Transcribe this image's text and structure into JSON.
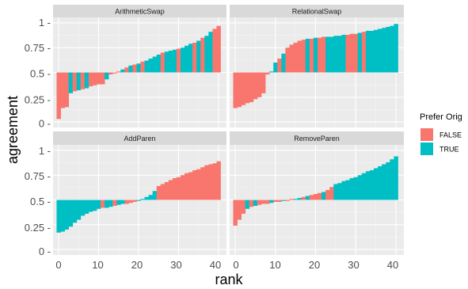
{
  "chart_data": {
    "type": "bar",
    "xlabel": "rank",
    "ylabel": "agreement",
    "xlim": [
      0,
      41
    ],
    "ylim": [
      0,
      1
    ],
    "baseline": 0.5,
    "x_ticks": [
      0,
      10,
      20,
      30,
      40
    ],
    "x_tick_labels": [
      "0",
      "10",
      "20",
      "30",
      "40"
    ],
    "y_ticks": [
      0,
      0.25,
      0.5,
      0.75,
      1
    ],
    "y_tick_labels": [
      "0 -",
      "0.25 -",
      "0.5 -",
      "0.75 -",
      "1 -"
    ],
    "grid": true,
    "legend": {
      "title": "Prefer Orig",
      "position": "right",
      "entries": [
        {
          "label": "FALSE",
          "key": "false",
          "color": "#F8766D"
        },
        {
          "label": "TRUE",
          "key": "true",
          "color": "#00BFC4"
        }
      ]
    },
    "panels": [
      {
        "title": "ArithmeticSwap",
        "values": [
          0.03,
          0.14,
          0.15,
          0.29,
          0.31,
          0.32,
          0.33,
          0.34,
          0.36,
          0.37,
          0.38,
          0.38,
          0.43,
          0.48,
          0.49,
          0.51,
          0.53,
          0.55,
          0.57,
          0.58,
          0.59,
          0.61,
          0.62,
          0.64,
          0.66,
          0.68,
          0.7,
          0.71,
          0.72,
          0.73,
          0.74,
          0.75,
          0.77,
          0.79,
          0.8,
          0.82,
          0.85,
          0.87,
          0.91,
          0.94,
          0.97
        ],
        "prefer_orig": [
          false,
          false,
          false,
          true,
          false,
          true,
          false,
          true,
          false,
          false,
          false,
          false,
          true,
          false,
          false,
          false,
          true,
          false,
          true,
          false,
          true,
          false,
          true,
          true,
          true,
          true,
          false,
          true,
          true,
          true,
          false,
          true,
          true,
          true,
          false,
          true,
          false,
          true,
          true,
          false,
          false
        ]
      },
      {
        "title": "RelationalSwap",
        "values": [
          0.14,
          0.15,
          0.17,
          0.19,
          0.2,
          0.23,
          0.25,
          0.29,
          0.48,
          0.51,
          0.6,
          0.64,
          0.69,
          0.75,
          0.78,
          0.8,
          0.82,
          0.83,
          0.84,
          0.84,
          0.85,
          0.85,
          0.86,
          0.86,
          0.86,
          0.87,
          0.87,
          0.88,
          0.88,
          0.89,
          0.89,
          0.9,
          0.91,
          0.92,
          0.92,
          0.93,
          0.94,
          0.95,
          0.96,
          0.97,
          0.99
        ],
        "prefer_orig": [
          false,
          false,
          false,
          false,
          false,
          false,
          false,
          false,
          false,
          true,
          true,
          false,
          true,
          false,
          false,
          false,
          false,
          false,
          true,
          false,
          true,
          false,
          false,
          true,
          true,
          true,
          true,
          true,
          false,
          false,
          false,
          true,
          false,
          true,
          true,
          true,
          true,
          true,
          true,
          true,
          true
        ]
      },
      {
        "title": "AddParen",
        "values": [
          0.17,
          0.18,
          0.2,
          0.23,
          0.27,
          0.3,
          0.34,
          0.36,
          0.38,
          0.39,
          0.41,
          0.42,
          0.42,
          0.43,
          0.44,
          0.45,
          0.46,
          0.46,
          0.47,
          0.48,
          0.49,
          0.51,
          0.53,
          0.55,
          0.59,
          0.64,
          0.66,
          0.68,
          0.7,
          0.72,
          0.73,
          0.75,
          0.77,
          0.78,
          0.8,
          0.81,
          0.83,
          0.85,
          0.86,
          0.87,
          0.89
        ],
        "prefer_orig": [
          true,
          true,
          true,
          true,
          true,
          true,
          true,
          true,
          true,
          true,
          true,
          false,
          true,
          true,
          false,
          true,
          true,
          false,
          false,
          false,
          true,
          true,
          true,
          true,
          true,
          false,
          false,
          false,
          false,
          false,
          false,
          false,
          false,
          false,
          false,
          false,
          false,
          false,
          false,
          false,
          false
        ]
      },
      {
        "title": "RemoveParen",
        "values": [
          0.24,
          0.3,
          0.36,
          0.41,
          0.43,
          0.44,
          0.45,
          0.46,
          0.46,
          0.47,
          0.48,
          0.48,
          0.49,
          0.49,
          0.51,
          0.51,
          0.52,
          0.53,
          0.54,
          0.55,
          0.56,
          0.57,
          0.58,
          0.6,
          0.63,
          0.66,
          0.67,
          0.69,
          0.7,
          0.72,
          0.73,
          0.75,
          0.77,
          0.79,
          0.8,
          0.82,
          0.84,
          0.86,
          0.88,
          0.91,
          0.94
        ],
        "prefer_orig": [
          false,
          false,
          false,
          true,
          false,
          true,
          false,
          false,
          false,
          true,
          false,
          false,
          true,
          false,
          false,
          true,
          true,
          false,
          true,
          false,
          false,
          false,
          true,
          false,
          false,
          true,
          true,
          true,
          true,
          true,
          true,
          true,
          true,
          true,
          true,
          true,
          true,
          true,
          true,
          true,
          true
        ]
      }
    ]
  }
}
